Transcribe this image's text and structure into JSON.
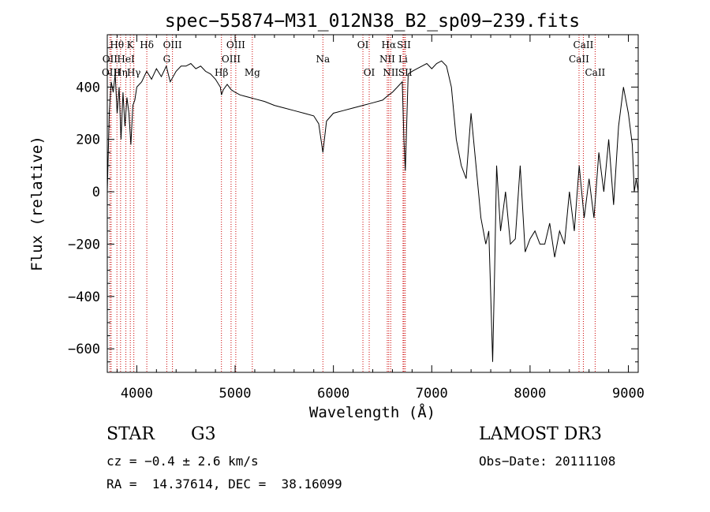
{
  "chart_data": {
    "type": "line",
    "title": "spec−55874−M31_012N38_B2_sp09−239.fits",
    "xlabel": "Wavelength (Å)",
    "ylabel": "Flux (relative)",
    "xlim": [
      3700,
      9100
    ],
    "ylim": [
      -690,
      600
    ],
    "x_ticks": [
      4000,
      5000,
      6000,
      7000,
      8000,
      9000
    ],
    "x_tick_labels": [
      "4000",
      "5000",
      "6000",
      "7000",
      "8000",
      "9000"
    ],
    "y_ticks": [
      -600,
      -400,
      -200,
      0,
      200,
      400
    ],
    "y_tick_labels": [
      "−600",
      "−400",
      "−200",
      "0",
      "200",
      "400"
    ],
    "grid": false,
    "series": [
      {
        "name": "flux",
        "x": [
          3700,
          3720,
          3740,
          3760,
          3780,
          3800,
          3820,
          3840,
          3860,
          3880,
          3900,
          3920,
          3940,
          3960,
          3980,
          4000,
          4050,
          4100,
          4150,
          4200,
          4250,
          4300,
          4340,
          4400,
          4450,
          4500,
          4550,
          4600,
          4650,
          4700,
          4750,
          4800,
          4850,
          4861,
          4880,
          4920,
          4960,
          5000,
          5050,
          5100,
          5150,
          5200,
          5300,
          5400,
          5500,
          5600,
          5700,
          5800,
          5850,
          5893,
          5930,
          6000,
          6100,
          6200,
          6300,
          6400,
          6500,
          6563,
          6600,
          6650,
          6700,
          6717,
          6731,
          6760,
          6800,
          6850,
          6900,
          6950,
          7000,
          7050,
          7100,
          7150,
          7200,
          7250,
          7300,
          7350,
          7400,
          7450,
          7500,
          7550,
          7580,
          7600,
          7620,
          7640,
          7660,
          7700,
          7750,
          7800,
          7850,
          7900,
          7950,
          8000,
          8050,
          8100,
          8150,
          8200,
          8250,
          8300,
          8350,
          8400,
          8450,
          8500,
          8550,
          8600,
          8650,
          8700,
          8750,
          8800,
          8850,
          8900,
          8950,
          9000,
          9040,
          9060,
          9080,
          9100
        ],
        "y": [
          0,
          300,
          420,
          380,
          450,
          300,
          400,
          200,
          380,
          250,
          360,
          300,
          180,
          330,
          350,
          400,
          420,
          460,
          430,
          470,
          440,
          480,
          420,
          460,
          480,
          480,
          490,
          470,
          480,
          460,
          450,
          430,
          400,
          370,
          390,
          410,
          390,
          380,
          370,
          365,
          360,
          355,
          345,
          330,
          320,
          310,
          300,
          290,
          260,
          150,
          270,
          300,
          310,
          320,
          330,
          340,
          350,
          370,
          380,
          400,
          420,
          200,
          80,
          450,
          460,
          470,
          480,
          490,
          470,
          490,
          500,
          480,
          400,
          200,
          100,
          50,
          300,
          100,
          -100,
          -200,
          -150,
          -400,
          -650,
          -300,
          100,
          -150,
          0,
          -200,
          -180,
          100,
          -230,
          -180,
          -150,
          -200,
          -200,
          -120,
          -250,
          -150,
          -200,
          0,
          -150,
          100,
          -100,
          50,
          -100,
          150,
          0,
          200,
          -50,
          250,
          400,
          300,
          180,
          0,
          50,
          0
        ],
        "pattern": "noisy absorption spectrum; strong telluric band near 7600 Å dips to about −660"
      }
    ],
    "line_markers": [
      {
        "label": "Hθ",
        "x": 3798,
        "row": 1
      },
      {
        "label": "OII",
        "x": 3727,
        "row": 2
      },
      {
        "label": "OIII",
        "x": 3740,
        "row": 3
      },
      {
        "label": "K",
        "x": 3934,
        "row": 1
      },
      {
        "label": "HeI",
        "x": 3889,
        "row": 2
      },
      {
        "label": "Hη",
        "x": 3835,
        "row": 3
      },
      {
        "label": "Hδ",
        "x": 4102,
        "row": 1
      },
      {
        "label": "Hγ",
        "x": 3970,
        "row": 3
      },
      {
        "label": "OIII",
        "x": 4363,
        "row": 1
      },
      {
        "label": "G",
        "x": 4305,
        "row": 2
      },
      {
        "label": "OIII",
        "x": 5007,
        "row": 1
      },
      {
        "label": "OIII",
        "x": 4959,
        "row": 2
      },
      {
        "label": "Hβ",
        "x": 4861,
        "row": 3
      },
      {
        "label": "Mg",
        "x": 5175,
        "row": 3
      },
      {
        "label": "Na",
        "x": 5893,
        "row": 2
      },
      {
        "label": "OI",
        "x": 6300,
        "row": 1
      },
      {
        "label": "OI",
        "x": 6364,
        "row": 3
      },
      {
        "label": "Hα",
        "x": 6563,
        "row": 1
      },
      {
        "label": "SII",
        "x": 6717,
        "row": 1
      },
      {
        "label": "NII",
        "x": 6548,
        "row": 2
      },
      {
        "label": "Li",
        "x": 6708,
        "row": 2
      },
      {
        "label": "NII",
        "x": 6583,
        "row": 3
      },
      {
        "label": "SII",
        "x": 6731,
        "row": 3
      },
      {
        "label": "CaII",
        "x": 8542,
        "row": 1
      },
      {
        "label": "CaII",
        "x": 8498,
        "row": 2
      },
      {
        "label": "CaII",
        "x": 8662,
        "row": 3
      }
    ],
    "marker_color": "#cc0000"
  },
  "info": {
    "class_label": "STAR",
    "subclass": "G3",
    "survey": "LAMOST DR3",
    "cz": "cz = −0.4 ± 2.6 km/s",
    "obs_date": "Obs−Date: 20111108",
    "coords": "RA =  14.37614, DEC =  38.16099"
  }
}
